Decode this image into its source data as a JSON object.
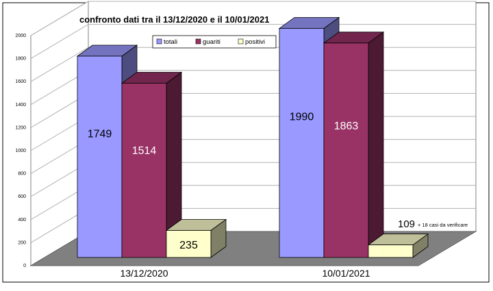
{
  "chart_data": {
    "type": "bar",
    "title": "confronto dati tra il 13/12/2020 e il 10/01/2021",
    "xlabel": "",
    "ylabel": "",
    "ylim": [
      0,
      2000
    ],
    "yticks": [
      0,
      200,
      400,
      600,
      800,
      1000,
      1200,
      1400,
      1600,
      1800,
      2000
    ],
    "categories": [
      "13/12/2020",
      "10/01/2021"
    ],
    "series": [
      {
        "name": "totali",
        "values": [
          1749,
          1990
        ],
        "color": "#9999ff"
      },
      {
        "name": "guariti",
        "values": [
          1514,
          1863
        ],
        "color": "#993366"
      },
      {
        "name": "positivi",
        "values": [
          235,
          109
        ],
        "color": "#ffffcc"
      }
    ],
    "data_labels": [
      [
        "1749",
        "1514",
        "235"
      ],
      [
        "1990",
        "1863",
        "109"
      ]
    ],
    "annotation": "+ 18 casi da verificare",
    "legend_position": "top-right",
    "grid": true,
    "projection": "3d"
  }
}
